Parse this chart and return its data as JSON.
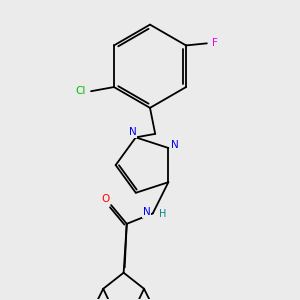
{
  "background_color": "#ebebeb",
  "bond_color": "#000000",
  "figsize": [
    3.0,
    3.0
  ],
  "dpi": 100,
  "atom_colors": {
    "N": "#0000ee",
    "O": "#ff0000",
    "Cl": "#00bb00",
    "F": "#ee00ee",
    "H": "#008888",
    "C": "#000000"
  },
  "bond_lw": 1.3
}
